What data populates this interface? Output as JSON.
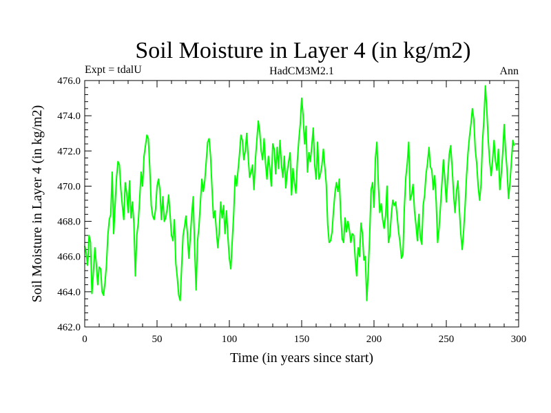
{
  "chart_data": {
    "type": "line",
    "title": "Soil Moisture in Layer 4 (in kg/m2)",
    "subtitle_left": "Expt = tdalU",
    "subtitle_center": "HadCM3M2.1",
    "subtitle_right": "Ann",
    "xlabel": "Time (in years since start)",
    "ylabel": "Soil Moisture in Layer 4 (in kg/m2)",
    "xlim": [
      0,
      300
    ],
    "ylim": [
      462,
      476
    ],
    "x_ticks": [
      0,
      50,
      100,
      150,
      200,
      250,
      300
    ],
    "y_ticks": [
      462.0,
      464.0,
      466.0,
      468.0,
      470.0,
      472.0,
      474.0,
      476.0
    ],
    "y_tick_labels": [
      "462.0",
      "464.0",
      "466.0",
      "468.0",
      "470.0",
      "472.0",
      "474.0",
      "476.0"
    ],
    "series_color": "#00ff00",
    "series": [
      {
        "name": "Soil Moisture Layer 4",
        "x_start": 0,
        "x_step": 1,
        "values": [
          466.6,
          466.2,
          465.5,
          467.2,
          466.8,
          463.9,
          465.1,
          466.5,
          465.6,
          464.4,
          465.4,
          465.3,
          464.0,
          463.8,
          464.5,
          465.5,
          467.2,
          468.1,
          468.4,
          470.8,
          467.3,
          468.9,
          470.5,
          471.4,
          471.2,
          469.8,
          468.9,
          468.1,
          470.2,
          469.6,
          468.5,
          470.3,
          468.2,
          469.1,
          467.9,
          464.9,
          467.2,
          467.9,
          469.3,
          470.8,
          470.0,
          471.7,
          472.3,
          472.9,
          472.7,
          471.0,
          468.9,
          468.3,
          468.1,
          468.7,
          470.0,
          470.4,
          469.8,
          468.1,
          469.4,
          468.0,
          468.2,
          468.7,
          469.5,
          468.4,
          467.2,
          466.9,
          468.1,
          465.6,
          464.8,
          463.8,
          463.5,
          465.4,
          467.2,
          467.7,
          468.3,
          467.3,
          465.9,
          467.1,
          468.4,
          469.4,
          466.5,
          464.1,
          466.9,
          467.7,
          469.1,
          470.4,
          469.7,
          470.3,
          471.4,
          472.5,
          472.7,
          471.7,
          469.9,
          468.2,
          468.6,
          467.5,
          466.5,
          467.4,
          469.1,
          468.2,
          468.9,
          467.3,
          468.6,
          467.1,
          465.9,
          465.3,
          466.9,
          468.4,
          470.6,
          470.0,
          470.9,
          471.8,
          472.9,
          472.6,
          471.5,
          472.0,
          473.0,
          471.7,
          470.5,
          470.8,
          471.2,
          469.8,
          471.5,
          472.6,
          473.7,
          473.1,
          472.0,
          471.5,
          472.7,
          471.3,
          470.4,
          471.7,
          471.0,
          470.0,
          472.4,
          472.1,
          470.7,
          472.2,
          471.0,
          472.6,
          471.2,
          470.5,
          471.7,
          469.9,
          470.8,
          471.4,
          471.9,
          469.5,
          471.0,
          470.2,
          469.6,
          471.4,
          472.6,
          473.5,
          475.0,
          474.0,
          472.4,
          473.4,
          470.8,
          471.9,
          471.4,
          472.3,
          473.3,
          471.2,
          470.4,
          472.5,
          470.4,
          470.7,
          471.2,
          472.1,
          471.1,
          470.1,
          467.8,
          466.8,
          466.9,
          467.4,
          468.6,
          469.6,
          470.2,
          469.7,
          470.4,
          468.4,
          467.0,
          466.8,
          468.2,
          467.4,
          468.0,
          467.5,
          466.8,
          467.3,
          467.2,
          465.9,
          464.9,
          466.5,
          466.0,
          467.9,
          467.3,
          465.8,
          466.0,
          463.5,
          465.1,
          467.2,
          469.8,
          470.2,
          468.8,
          471.6,
          472.5,
          470.1,
          468.5,
          469.0,
          468.1,
          467.6,
          468.3,
          470.0,
          466.8,
          467.2,
          468.4,
          469.2,
          468.9,
          469.1,
          468.3,
          467.4,
          466.8,
          465.9,
          466.1,
          468.8,
          470.5,
          471.3,
          472.5,
          469.2,
          469.5,
          470.1,
          468.6,
          467.8,
          466.9,
          468.4,
          467.1,
          466.7,
          468.9,
          469.5,
          470.7,
          471.3,
          472.2,
          471.1,
          470.9,
          469.8,
          470.6,
          469.1,
          466.8,
          467.6,
          468.9,
          470.2,
          471.5,
          470.4,
          469.1,
          470.5,
          471.8,
          472.3,
          471.1,
          469.6,
          468.5,
          469.7,
          470.3,
          468.7,
          467.3,
          466.4,
          467.5,
          468.9,
          470.6,
          471.9,
          472.8,
          473.5,
          474.4,
          473.8,
          472.1,
          471.3,
          470.0,
          469.2,
          470.1,
          472.5,
          473.8,
          475.7,
          474.3,
          472.6,
          471.4,
          470.6,
          471.5,
          472.6,
          471.4,
          470.9,
          472.1,
          469.8,
          470.7,
          471.9,
          473.5,
          472.0,
          470.9,
          469.3,
          470.2,
          471.4,
          472.6,
          472.3
        ]
      }
    ]
  }
}
